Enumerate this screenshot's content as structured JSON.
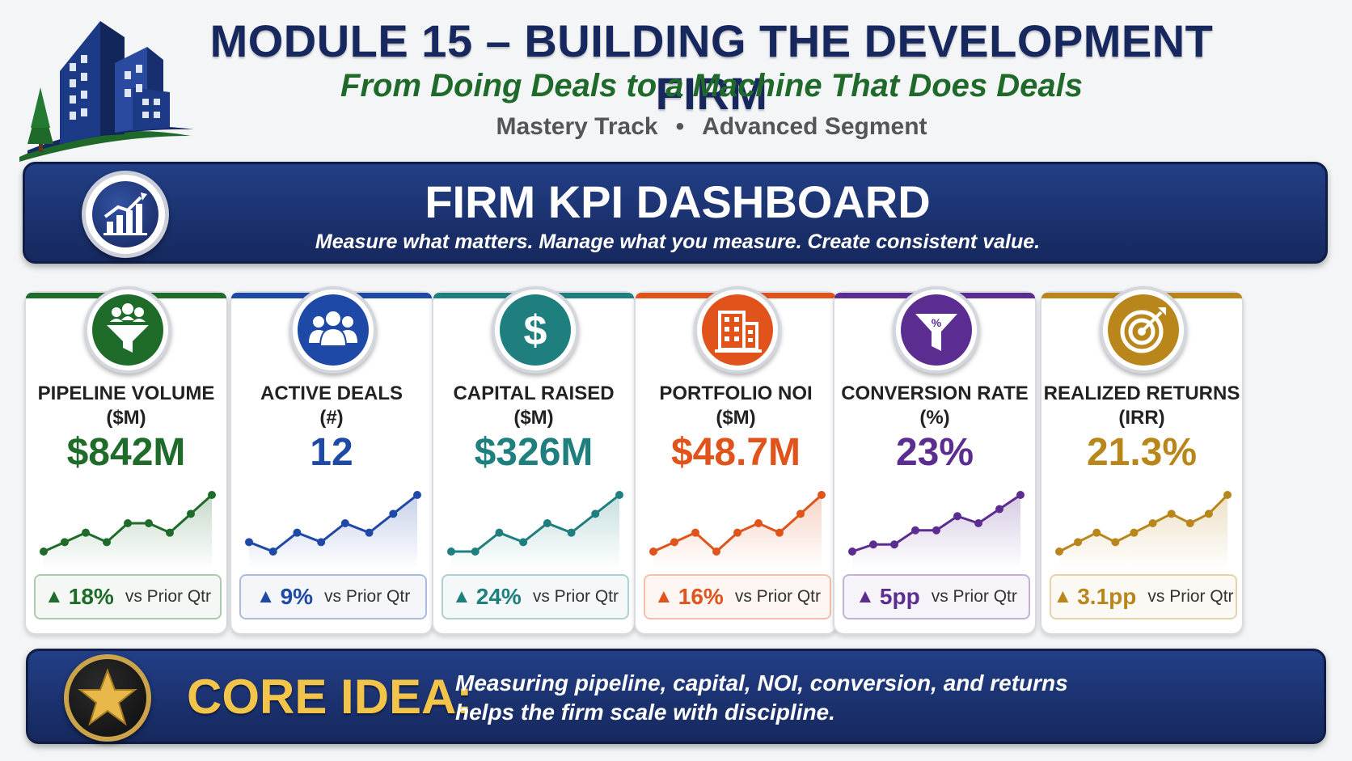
{
  "header": {
    "title": "MODULE 15 – BUILDING THE DEVELOPMENT FIRM",
    "subtitle": "From Doing Deals to a Machine That Does Deals",
    "track": "Mastery Track",
    "segment": "Advanced Segment",
    "separator": "•",
    "logo_icon": "city-buildings-logo"
  },
  "banner": {
    "title": "FIRM KPI DASHBOARD",
    "tagline": "Measure what matters. Manage what you measure. Create consistent value.",
    "icon": "growth-chart-icon"
  },
  "kpis": [
    {
      "label_line1": "PIPELINE VOLUME",
      "label_line2": "($M)",
      "value": "$842M",
      "delta": "18%",
      "delta_suffix": "vs Prior Qtr",
      "trend_arrow": "▲",
      "icon": "people-funnel-icon",
      "color": "#1e6b2a",
      "spark": [
        2,
        3,
        4,
        3,
        5,
        5,
        4,
        6,
        8
      ]
    },
    {
      "label_line1": "ACTIVE DEALS",
      "label_line2": "(#)",
      "value": "12",
      "delta": "9%",
      "delta_suffix": "vs Prior Qtr",
      "trend_arrow": "▲",
      "icon": "team-icon",
      "color": "#1f49a6",
      "spark": [
        3,
        2,
        4,
        3,
        5,
        4,
        6,
        8
      ]
    },
    {
      "label_line1": "CAPITAL RAISED",
      "label_line2": "($M)",
      "value": "$326M",
      "delta": "24%",
      "delta_suffix": "vs Prior Qtr",
      "trend_arrow": "▲",
      "icon": "dollar-icon",
      "color": "#1f7f7f",
      "spark": [
        2,
        2,
        4,
        3,
        5,
        4,
        6,
        8
      ]
    },
    {
      "label_line1": "PORTFOLIO NOI",
      "label_line2": "($M)",
      "value": "$48.7M",
      "delta": "16%",
      "delta_suffix": "vs Prior Qtr",
      "trend_arrow": "▲",
      "icon": "office-building-icon",
      "color": "#e0531b",
      "spark": [
        3,
        4,
        5,
        3,
        5,
        6,
        5,
        7,
        9
      ]
    },
    {
      "label_line1": "CONVERSION RATE",
      "label_line2": "(%)",
      "value": "23%",
      "delta": "5pp",
      "delta_suffix": "vs Prior Qtr",
      "trend_arrow": "▲",
      "icon": "percent-funnel-icon",
      "color": "#5c2d91",
      "spark": [
        2,
        3,
        3,
        5,
        5,
        7,
        6,
        8,
        10
      ]
    },
    {
      "label_line1": "REALIZED RETURNS",
      "label_line2": "(IRR)",
      "value": "21.3%",
      "delta": "3.1pp",
      "delta_suffix": "vs Prior Qtr",
      "trend_arrow": "▲",
      "icon": "target-icon",
      "color": "#b8861b",
      "spark": [
        2,
        3,
        4,
        3,
        4,
        5,
        6,
        5,
        6,
        8
      ]
    }
  ],
  "core": {
    "label": "CORE IDEA:",
    "line1": "Measuring pipeline, capital, NOI, conversion, and returns",
    "line2": "helps the firm scale with discipline.",
    "icon": "star-icon"
  }
}
